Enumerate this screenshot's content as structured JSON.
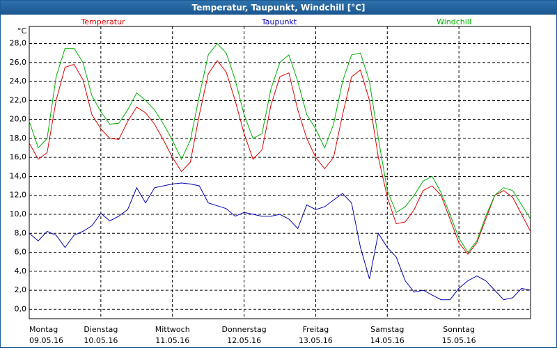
{
  "chart_data": {
    "type": "line",
    "title": "Temperatur, Taupunkt, Windchill [°C]",
    "unit": "°C",
    "categories": [
      "Montag",
      null,
      null,
      null,
      null,
      null,
      null,
      null,
      "Dienstag",
      null,
      null,
      null,
      null,
      null,
      null,
      null,
      "Mittwoch",
      null,
      null,
      null,
      null,
      null,
      null,
      null,
      "Donnerstag",
      null,
      null,
      null,
      null,
      null,
      null,
      null,
      "Freitag",
      null,
      null,
      null,
      null,
      null,
      null,
      null,
      "Samstag",
      null,
      null,
      null,
      null,
      null,
      null,
      null,
      "Sonntag",
      null,
      null,
      null,
      null,
      null,
      null,
      null,
      null
    ],
    "dates": [
      "09.05.16",
      null,
      null,
      null,
      null,
      null,
      null,
      null,
      "10.05.16",
      null,
      null,
      null,
      null,
      null,
      null,
      null,
      "11.05.16",
      null,
      null,
      null,
      null,
      null,
      null,
      null,
      "12.05.16",
      null,
      null,
      null,
      null,
      null,
      null,
      null,
      "13.05.16",
      null,
      null,
      null,
      null,
      null,
      null,
      null,
      "14.05.16",
      null,
      null,
      null,
      null,
      null,
      null,
      null,
      "15.05.16",
      null,
      null,
      null,
      null,
      null,
      null,
      null,
      null
    ],
    "series": [
      {
        "name": "Temperatur",
        "color": "#e00000",
        "values": [
          17.5,
          15.8,
          16.5,
          22,
          25.5,
          25.8,
          24.2,
          20.5,
          19,
          18,
          17.9,
          19.8,
          21.3,
          20.7,
          19.5,
          17.8,
          16,
          14.5,
          15.5,
          20.5,
          24.8,
          26.2,
          25,
          22,
          18.5,
          15.8,
          16.8,
          21.5,
          24.5,
          24.9,
          21,
          18,
          16,
          14.8,
          16,
          20.5,
          24.5,
          25.2,
          22,
          16,
          11.8,
          9,
          9.2,
          10.5,
          12.5,
          13,
          12,
          9.5,
          7,
          5.8,
          7,
          9.5,
          12,
          12.5,
          11.8,
          10,
          8.2
        ]
      },
      {
        "name": "Taupunkt",
        "color": "#0000b0",
        "values": [
          8,
          7.2,
          8.2,
          7.8,
          6.5,
          7.8,
          8.2,
          8.8,
          10.1,
          9.3,
          9.8,
          10.5,
          12.8,
          11.2,
          12.8,
          13,
          13.2,
          13.3,
          13.2,
          13,
          11.2,
          10.9,
          10.6,
          9.8,
          10.2,
          10,
          9.8,
          9.8,
          10,
          9.5,
          8.5,
          11,
          10.5,
          10.8,
          11.5,
          12.2,
          11.2,
          6.5,
          3.2,
          8,
          6.5,
          5.5,
          3,
          1.8,
          2,
          1.5,
          1,
          1,
          2.2,
          3,
          3.5,
          3,
          2,
          1,
          1.2,
          2.2,
          2
        ]
      },
      {
        "name": "Windchill",
        "color": "#00b000",
        "values": [
          19.8,
          17,
          18,
          24.5,
          27.5,
          27.5,
          26,
          22.5,
          20.8,
          19.5,
          19.6,
          21,
          22.8,
          22,
          21,
          19.5,
          17.8,
          15.8,
          17.8,
          22.5,
          26.8,
          28,
          27,
          24.2,
          20.5,
          18,
          18.5,
          23.2,
          26,
          26.8,
          24,
          20.5,
          19,
          17,
          19.5,
          24,
          26.8,
          27,
          24,
          18,
          12.5,
          10.2,
          10.8,
          12,
          13.5,
          14,
          12.3,
          10,
          7.5,
          6,
          7.2,
          9.8,
          12,
          12.8,
          12.5,
          11,
          9.5
        ]
      }
    ],
    "ylim": [
      -1,
      29.8
    ],
    "yticks": [
      {
        "value": 0,
        "label": "0,0"
      },
      {
        "value": 2,
        "label": "2,0"
      },
      {
        "value": 4,
        "label": "4,0"
      },
      {
        "value": 6,
        "label": "6,0"
      },
      {
        "value": 8,
        "label": "8,0"
      },
      {
        "value": 10,
        "label": "10,0"
      },
      {
        "value": 12,
        "label": "12,0"
      },
      {
        "value": 14,
        "label": "14,0"
      },
      {
        "value": 16,
        "label": "16,0"
      },
      {
        "value": 18,
        "label": "18,0"
      },
      {
        "value": 20,
        "label": "20,0"
      },
      {
        "value": 22,
        "label": "22,0"
      },
      {
        "value": 24,
        "label": "24,0"
      },
      {
        "value": 26,
        "label": "26,0"
      },
      {
        "value": 28,
        "label": "28,0"
      }
    ],
    "grid": true
  }
}
